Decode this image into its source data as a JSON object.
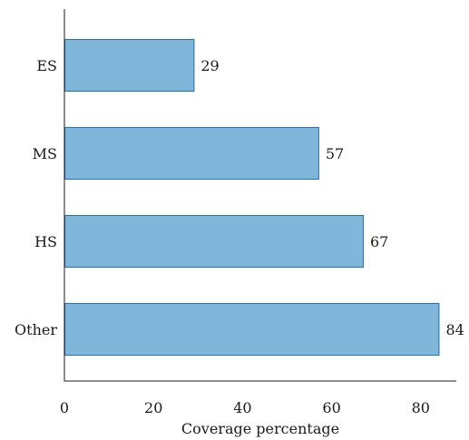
{
  "chart_data": {
    "type": "bar",
    "orientation": "horizontal",
    "categories": [
      "ES",
      "MS",
      "HS",
      "Other"
    ],
    "values": [
      29,
      57,
      67,
      84
    ],
    "xlabel": "Coverage percentage",
    "ylabel": "",
    "xlim": [
      0,
      88
    ],
    "xticks": [
      0,
      20,
      40,
      60,
      80
    ],
    "xtick_labels": [
      "0",
      "20",
      "40",
      "60",
      "80"
    ],
    "grid": false,
    "legend": "none",
    "data_labels": true,
    "bar_fill": "#7fb6d9",
    "bar_stroke": "#2171b5"
  }
}
